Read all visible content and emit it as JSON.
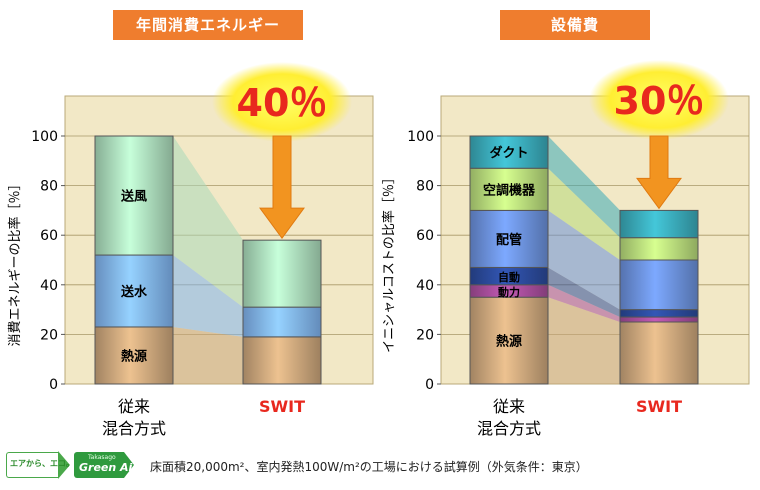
{
  "charts": [
    {
      "id": "energy",
      "title": "年間消費エネルギー",
      "ylabel": "消費エネルギーの比率［％］",
      "reduction_label": "40％"
    },
    {
      "id": "cost",
      "title": "設備費",
      "ylabel": "イニシャルコストの比率［％］",
      "reduction_label": "30％"
    }
  ],
  "chart_data": [
    {
      "type": "bar",
      "stacked": true,
      "title": "年間消費エネルギー",
      "xlabel": "",
      "ylabel": "消費エネルギーの比率［％］",
      "ylim": [
        0,
        100
      ],
      "yticks": [
        0,
        20,
        40,
        60,
        80,
        100
      ],
      "categories": [
        "従来\n混合方式",
        "SWIT"
      ],
      "series": [
        {
          "name": "熱源",
          "values": [
            23,
            19
          ],
          "color": "#c9a47a"
        },
        {
          "name": "送水",
          "values": [
            29,
            12
          ],
          "color": "#7fb2ee"
        },
        {
          "name": "送風",
          "values": [
            48,
            27
          ],
          "color": "#a9d9b9"
        }
      ],
      "annotation": "40％",
      "grid": true
    },
    {
      "type": "bar",
      "stacked": true,
      "title": "設備費",
      "xlabel": "",
      "ylabel": "イニシャルコストの比率［％］",
      "ylim": [
        0,
        100
      ],
      "yticks": [
        0,
        20,
        40,
        60,
        80,
        100
      ],
      "categories": [
        "従来\n混合方式",
        "SWIT"
      ],
      "series": [
        {
          "name": "熱源",
          "values": [
            35,
            25
          ],
          "color": "#c9a47a"
        },
        {
          "name": "動力",
          "values": [
            5,
            2
          ],
          "color": "#a64d9a"
        },
        {
          "name": "自動",
          "values": [
            7,
            3
          ],
          "color": "#2b4a9a"
        },
        {
          "name": "配管",
          "values": [
            23,
            20
          ],
          "color": "#6a8fd9"
        },
        {
          "name": "空調機器",
          "values": [
            17,
            9
          ],
          "color": "#b6d97a"
        },
        {
          "name": "ダクト",
          "values": [
            13,
            11
          ],
          "color": "#3aa9b8"
        }
      ],
      "annotation": "30％",
      "grid": true
    }
  ],
  "footer": {
    "badge_left": "エアから、エコ。",
    "badge_small": "Takasago",
    "badge_big": "Green Air",
    "note": "床面積20,000m²、室内発熱100W/m²の工場における試算例（外気条件：東京）"
  }
}
